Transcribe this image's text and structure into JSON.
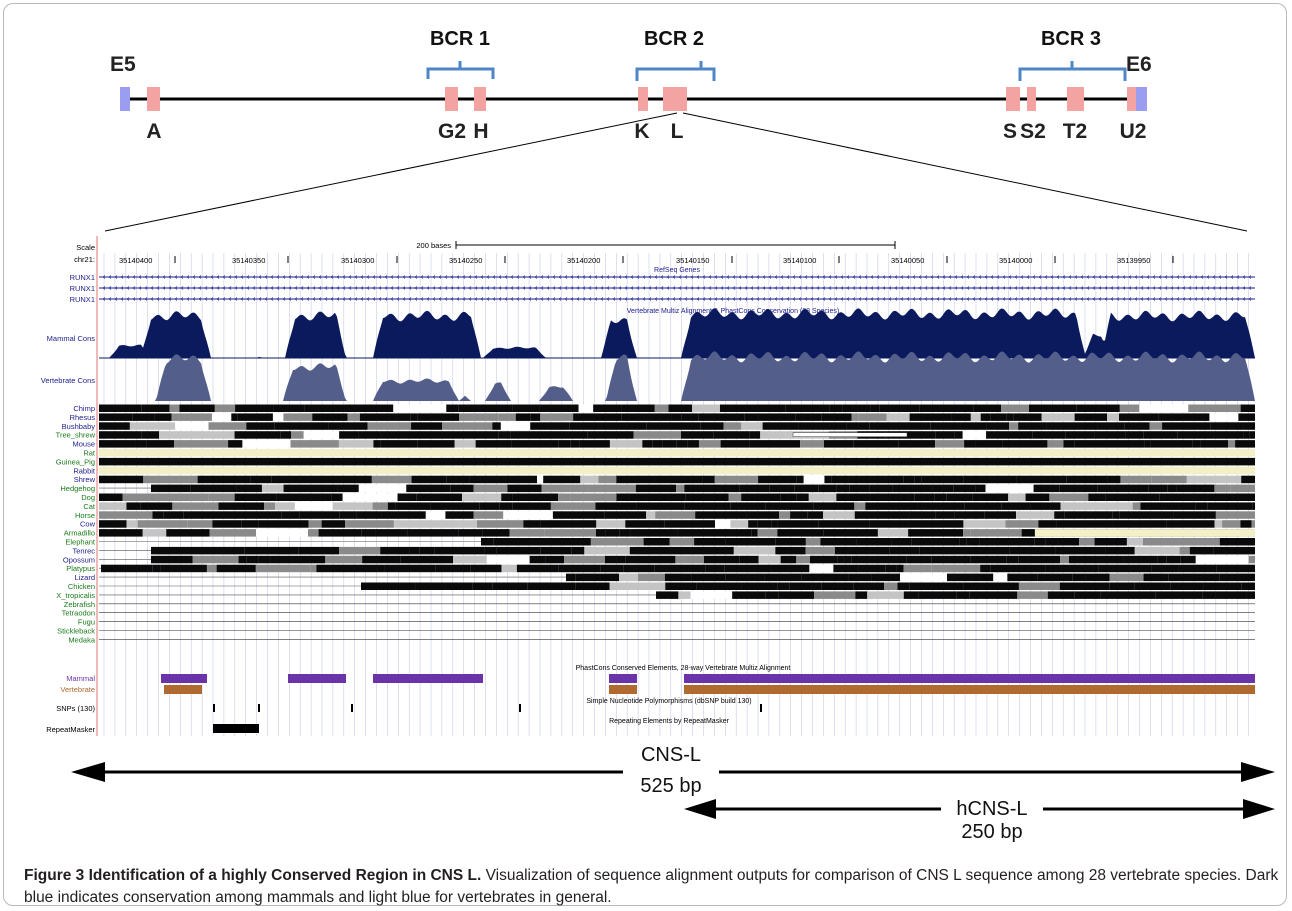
{
  "gene_map": {
    "exons": [
      "E5",
      "E6"
    ],
    "bcr_labels": [
      "BCR 1",
      "BCR 2",
      "BCR 3"
    ],
    "element_labels": [
      "A",
      "G2",
      "H",
      "K",
      "L",
      "S",
      "S2",
      "T2",
      "U2"
    ]
  },
  "browser": {
    "scale_label": "Scale",
    "chrom_label": "chr21:",
    "scale_text": "200 bases",
    "positions": [
      "35140400",
      "35140350",
      "35140300",
      "35140250",
      "35140200",
      "35140150",
      "35140100",
      "35140050",
      "35140000",
      "35139950"
    ],
    "refseq_title": "RefSeq Genes",
    "runx_labels": [
      "RUNX1",
      "RUNX1",
      "RUNX1"
    ],
    "cons_title": "Vertebrate Multiz Alignment & PhastCons Conservation (28 Species)",
    "mammal_cons_label": "Mammal Cons",
    "vert_cons_label": "Vertebrate Cons",
    "species": [
      "Chimp",
      "Rhesus",
      "Bushbaby",
      "Tree_shrew",
      "Mouse",
      "Rat",
      "Guinea_Pig",
      "Rabbit",
      "Shrew",
      "Hedgehog",
      "Dog",
      "Cat",
      "Horse",
      "Cow",
      "Armadillo",
      "Elephant",
      "Tenrec",
      "Opossum",
      "Platypus",
      "Lizard",
      "Chicken",
      "X_tropicalis",
      "Zebrafish",
      "Tetraodon",
      "Fugu",
      "Stickleback",
      "Medaka"
    ],
    "phastcons_title": "PhastCons Conserved Elements, 28-way Vertebrate Multiz Alignment",
    "mammal_label": "Mammal",
    "vertebrate_label": "Vertebrate",
    "snp_title": "Simple Nucleotide Polymorphisms (dbSNP build 130)",
    "snp_label": "SNPs (130)",
    "repeat_title": "Repeating Elements by RepeatMasker",
    "repeat_label": "RepeatMasker"
  },
  "annotations": {
    "cns_l_name": "CNS-L",
    "cns_l_size": "525 bp",
    "hcns_l_name": "hCNS-L",
    "hcns_l_size": "250 bp"
  },
  "caption": {
    "label": "Figure 3 Identification of a highly Conserved Region in CNS L.",
    "text": " Visualization of sequence alignment outputs for comparison of CNS L sequence among 28 vertebrate species. Dark blue indicates conservation among mammals and light blue for vertebrates in general."
  },
  "colors": {
    "mammal_cons": "#0b1a5c",
    "vertebrate_cons": "#545e8a",
    "mammal_element": "#6a33a8",
    "vertebrate_element": "#b0692e",
    "exon": "#f4a3a3",
    "terminal_exon": "#9b9ef0",
    "bracket": "#4e86c6",
    "species_primate": "#1c1c8c",
    "species_other": "#1a7a1a"
  }
}
